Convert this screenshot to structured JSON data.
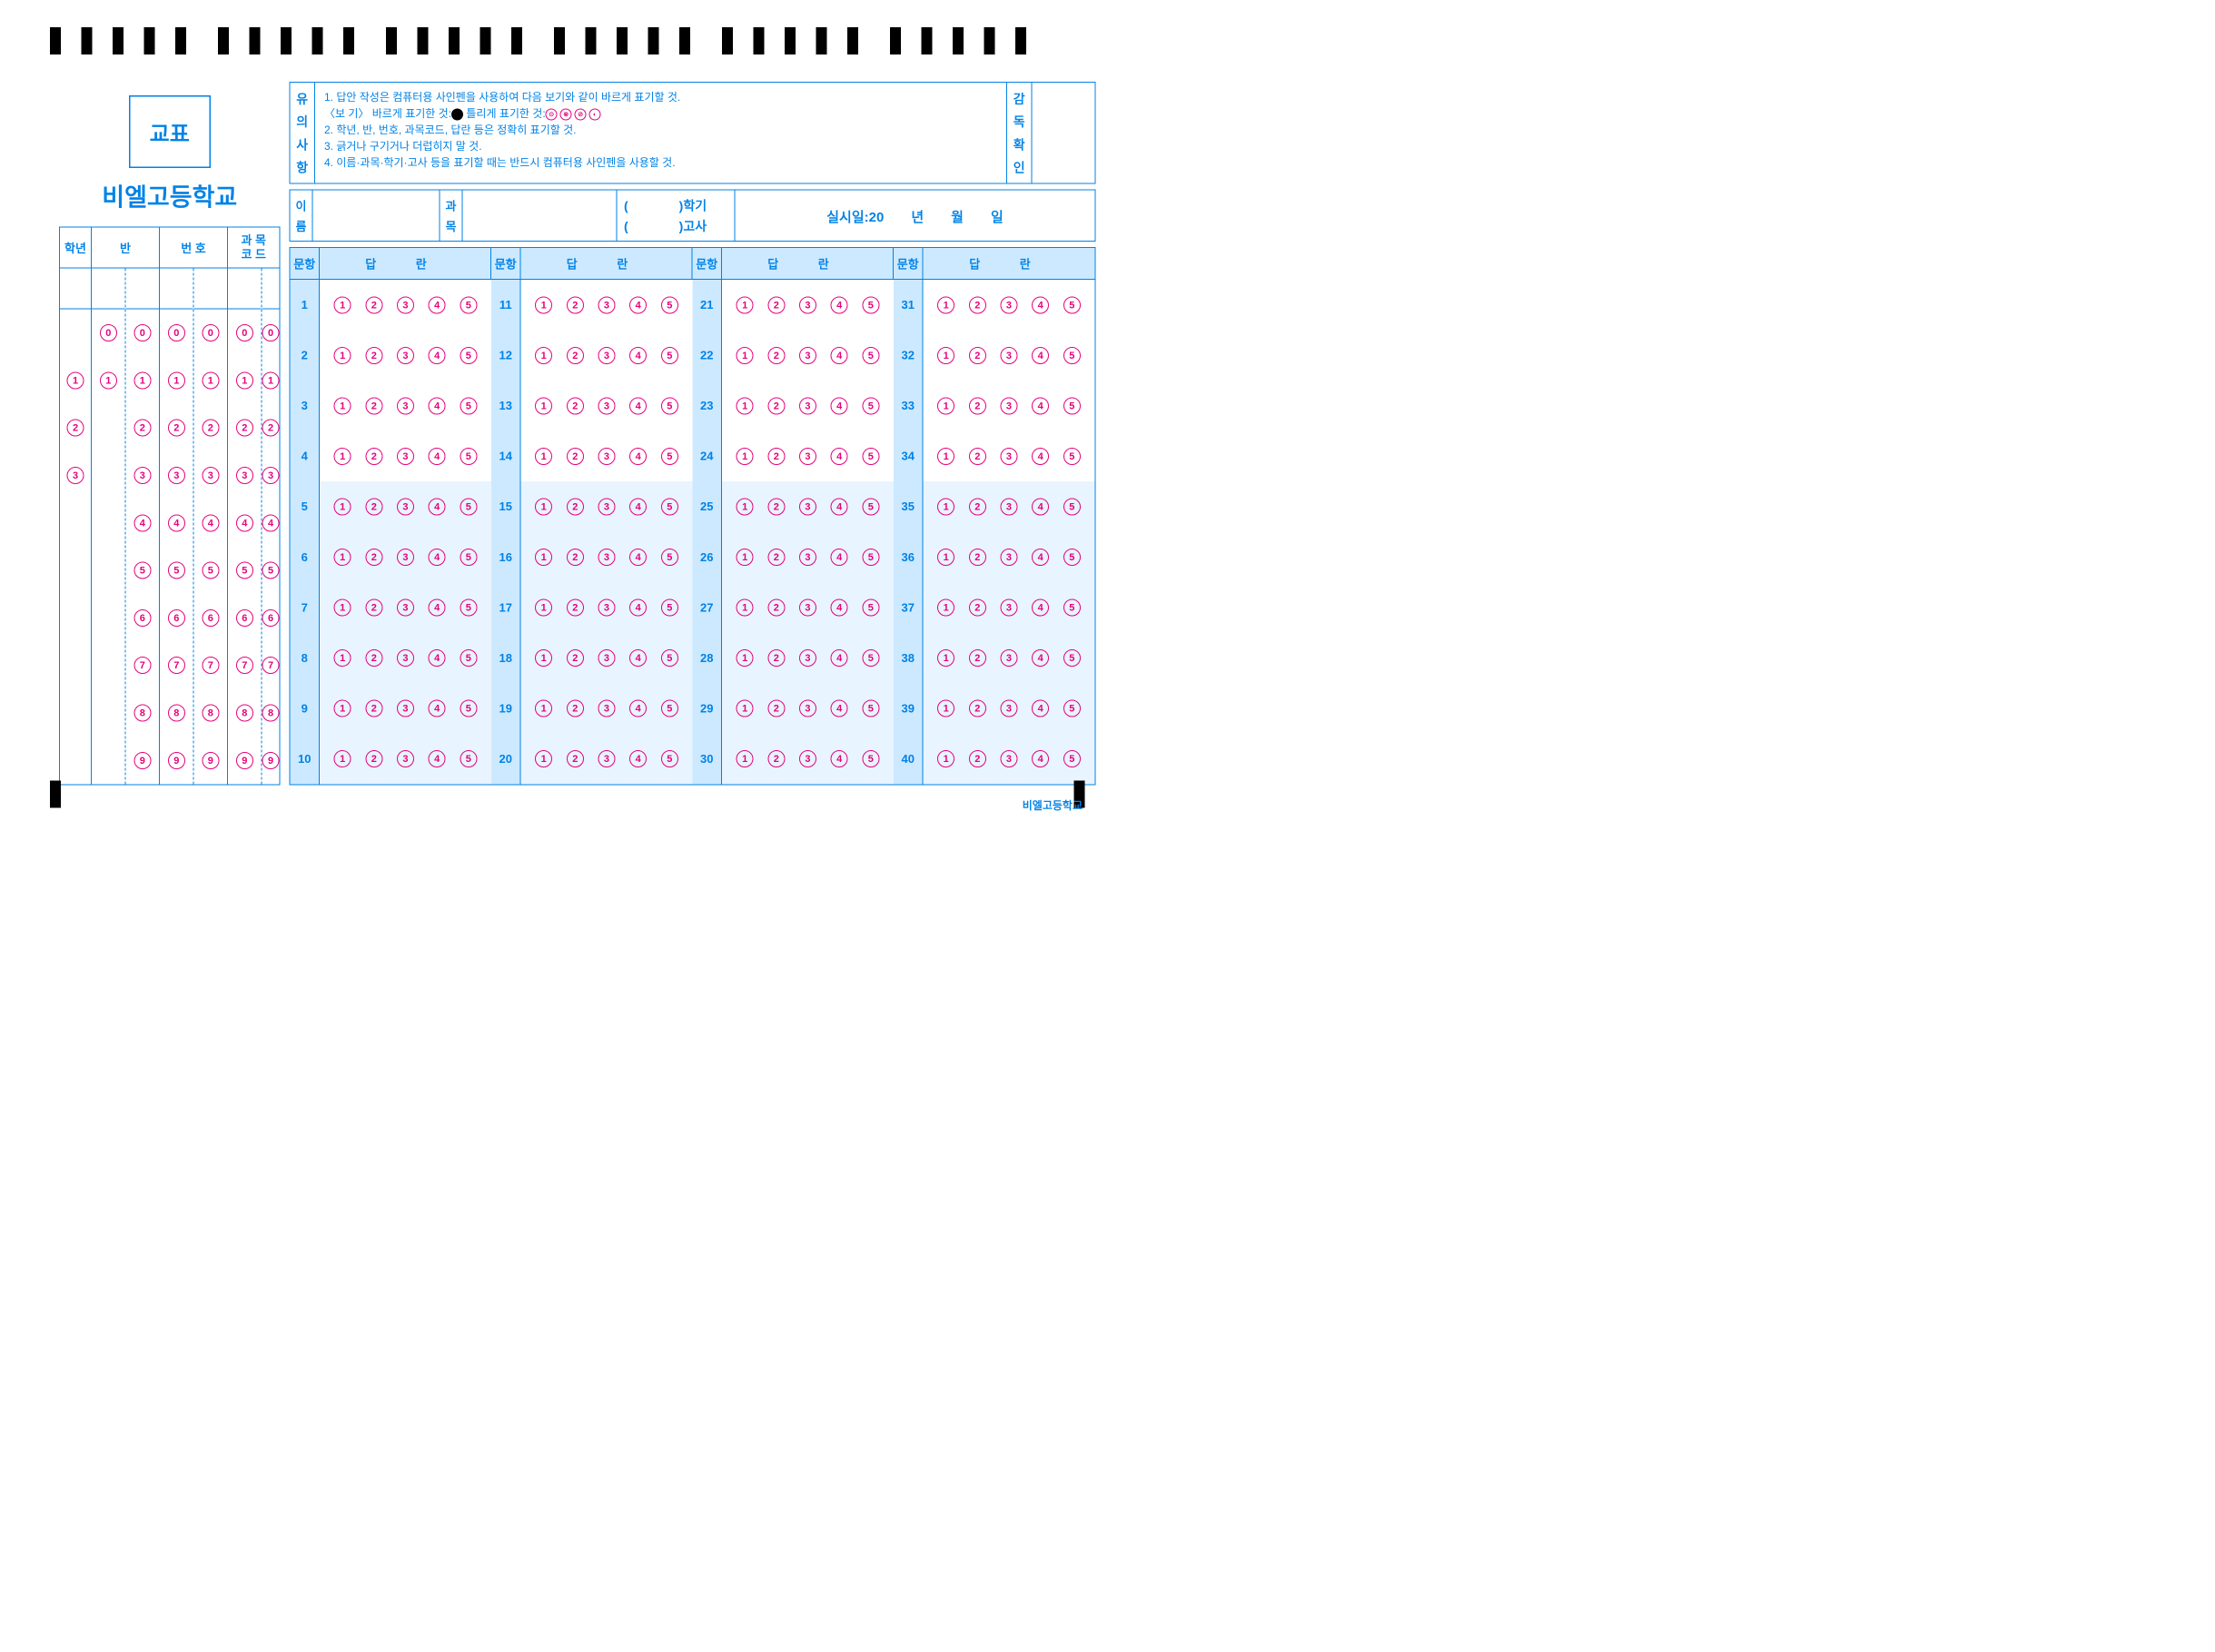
{
  "colors": {
    "primary": "#0082e6",
    "bubble": "#e6007e",
    "header_bg": "#cce9ff",
    "shade_bg": "#e8f4ff",
    "black": "#000000",
    "white": "#ffffff"
  },
  "logo_text": "교표",
  "school_name": "비엘고등학교",
  "id_table": {
    "headers": {
      "grade": "학년",
      "class": "반",
      "number": "번 호",
      "subject_code_1": "과 목",
      "subject_code_2": "코 드"
    },
    "col_widths": {
      "grade": 70,
      "class": 75,
      "number": 75,
      "code": 75
    },
    "grade_options": [
      "1",
      "2",
      "3"
    ],
    "digit_options": [
      "0",
      "1",
      "2",
      "3",
      "4",
      "5",
      "6",
      "7",
      "8",
      "9"
    ],
    "class_col1_options": [
      "0",
      "1"
    ],
    "columns": {
      "grade": 1,
      "class": 2,
      "number": 2,
      "code": 2
    }
  },
  "notice": {
    "label": "유의사항",
    "lines": [
      "1. 답안 작성은 컴퓨터용 사인펜을 사용하여 다음 보기와 같이 바르게 표기할 것.",
      "〈보 기〉 바르게 표기한 것:●    틀리게 표기한 것:",
      "2. 학년, 반, 번호, 과목코드, 답란 등은 정확히 표기할 것.",
      "3. 긁거나 구기거나 더럽히지 말 것.",
      "4. 이름·과목·학기·고사 등을 표기할 때는 반드시 컴퓨터용 사인펜을 사용할 것."
    ],
    "wrong_examples": [
      "⊙",
      "⊗",
      "⊘",
      "◐"
    ]
  },
  "supervisor_label": "감독확인",
  "info_bar": {
    "name_label": "이름",
    "subject_label": "과목",
    "term_label": "학기",
    "exam_label": "고사",
    "date_prefix": "실시일:20",
    "year": "년",
    "month": "월",
    "day": "일"
  },
  "answer_table": {
    "q_header": "문항",
    "a_header": "답   란",
    "columns": 4,
    "rows_per_column": 10,
    "options": [
      "1",
      "2",
      "3",
      "4",
      "5"
    ],
    "shade_rows": [
      5,
      6,
      7,
      8,
      9,
      10
    ]
  },
  "footer": "비엘고등학교",
  "timing_marks": {
    "groups": 6,
    "per_group": 5,
    "group_gap": 70,
    "mark_gap": 45,
    "mark_width": 24,
    "mark_height": 60
  }
}
